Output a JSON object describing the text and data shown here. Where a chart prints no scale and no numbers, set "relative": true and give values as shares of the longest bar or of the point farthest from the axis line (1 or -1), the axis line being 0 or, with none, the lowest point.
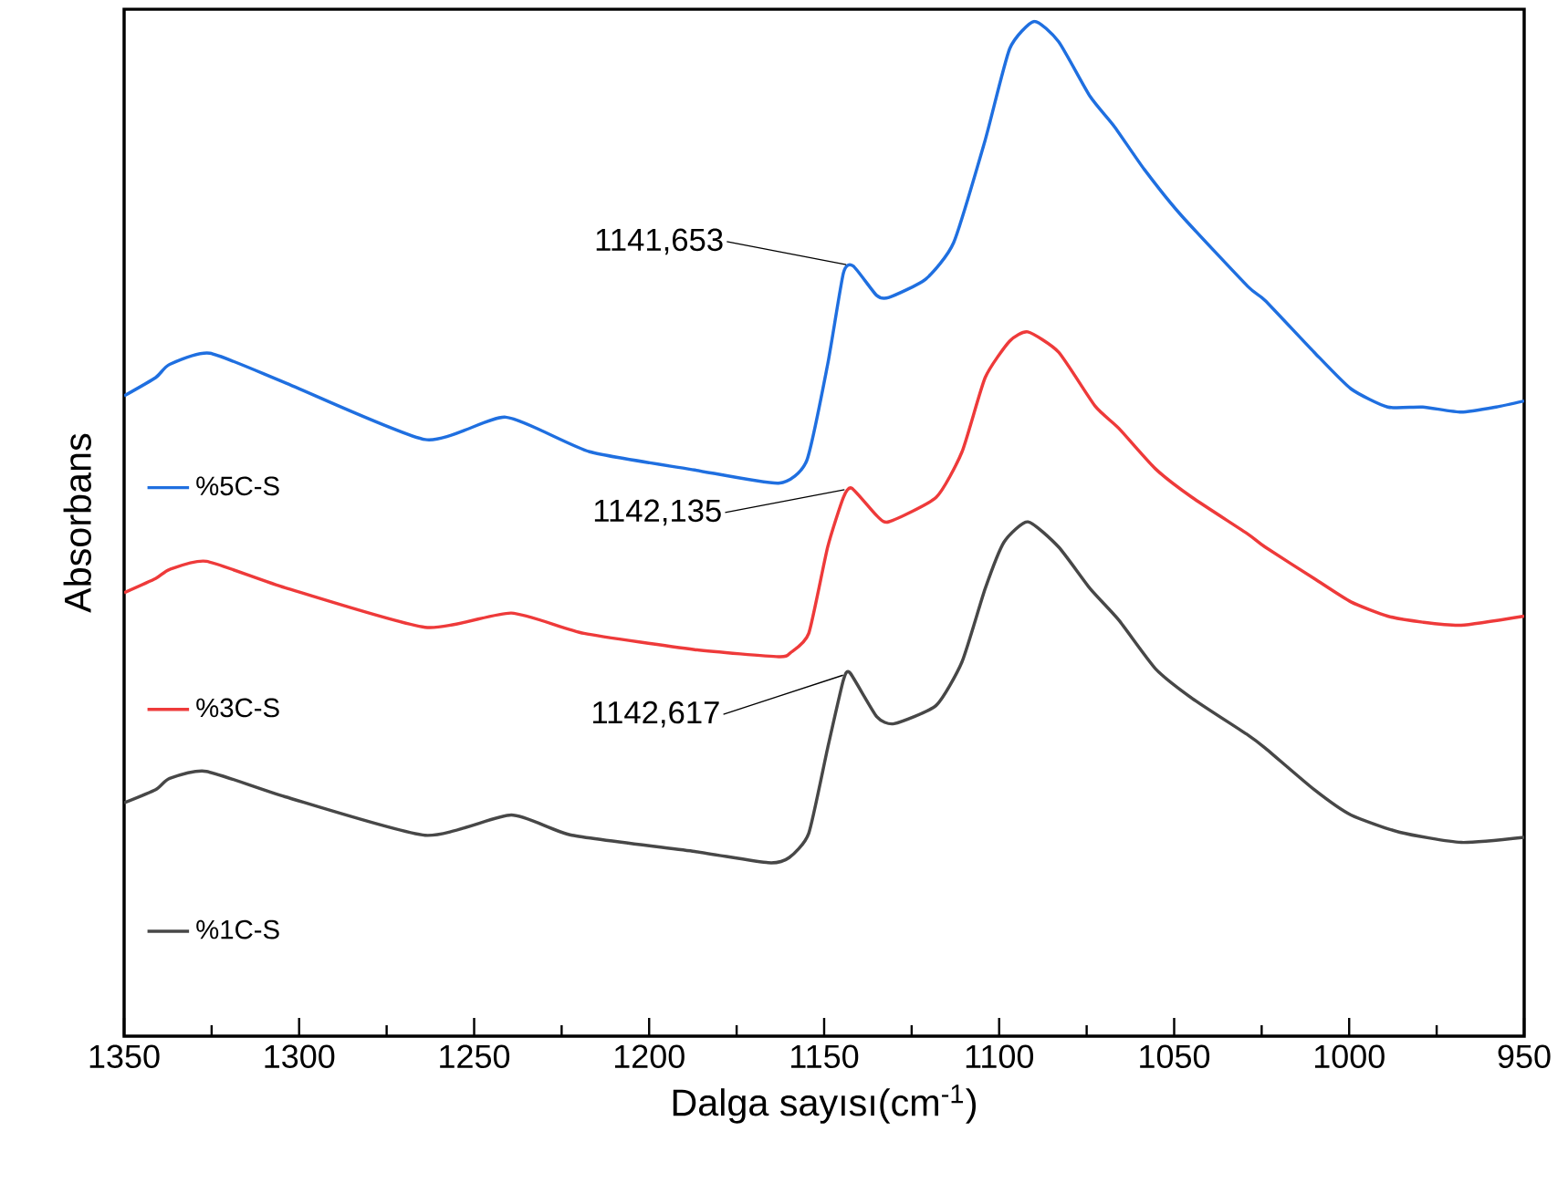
{
  "chart_data": {
    "type": "line",
    "relative": true,
    "xlabel": "Dalga sayısı(cm$^{-1}$)",
    "ylabel": "Absorbans",
    "xlim": [
      1350,
      950
    ],
    "xticks": [
      1350,
      1300,
      1250,
      1200,
      1150,
      1100,
      1050,
      1000,
      950
    ],
    "legend": "left",
    "marker": "none",
    "line_style": "solid",
    "grid": false,
    "series": [
      {
        "name": "%5C-S",
        "color": "#1f6fe0",
        "x": [
          1350,
          1341,
          1337,
          1325.5,
          1304,
          1264,
          1241,
          1217,
          1187,
          1163,
          1155,
          1149,
          1144.5,
          1141.7,
          1135,
          1131.5,
          1121,
          1113,
          1104,
          1097,
          1090,
          1083,
          1074,
          1067,
          1058.5,
          1048,
          1029,
          1024,
          1010,
          999.5,
          989,
          979,
          968,
          958,
          950
        ],
        "values": [
          0.631,
          0.649,
          0.662,
          0.673,
          0.644,
          0.588,
          0.61,
          0.576,
          0.558,
          0.545,
          0.567,
          0.662,
          0.752,
          0.759,
          0.73,
          0.728,
          0.746,
          0.782,
          0.883,
          0.973,
          1,
          0.98,
          0.926,
          0.896,
          0.854,
          0.809,
          0.739,
          0.725,
          0.674,
          0.638,
          0.62,
          0.62,
          0.615,
          0.62,
          0.626
        ]
      },
      {
        "name": "%3C-S",
        "color": "#ee3a3a",
        "x": [
          1350,
          1341,
          1337,
          1326.5,
          1304,
          1264,
          1239.4,
          1218.6,
          1187,
          1163,
          1159.6,
          1154.4,
          1149,
          1144.5,
          1142.1,
          1135,
          1131.5,
          1118,
          1110.6,
          1104,
          1097,
          1091.8,
          1083,
          1072.6,
          1065.8,
          1055.3,
          1044.9,
          1029,
          1024,
          1010,
          999.5,
          989,
          979,
          968,
          950
        ],
        "values": [
          0.437,
          0.451,
          0.46,
          0.468,
          0.442,
          0.403,
          0.417,
          0.397,
          0.381,
          0.374,
          0.378,
          0.397,
          0.482,
          0.531,
          0.54,
          0.513,
          0.507,
          0.531,
          0.576,
          0.649,
          0.685,
          0.694,
          0.674,
          0.621,
          0.599,
          0.559,
          0.531,
          0.495,
          0.482,
          0.451,
          0.428,
          0.414,
          0.408,
          0.405,
          0.414
        ]
      },
      {
        "name": "%1C-S",
        "color": "#474747",
        "x": [
          1350,
          1341,
          1337,
          1326.5,
          1304,
          1264,
          1239.4,
          1222,
          1187,
          1166,
          1160,
          1154.4,
          1149,
          1144.5,
          1142.6,
          1135,
          1130,
          1118,
          1110.6,
          1104,
          1098.6,
          1091.8,
          1083,
          1074,
          1065.8,
          1055.3,
          1044.9,
          1029,
          1024,
          1010,
          999.5,
          985.5,
          968,
          950
        ],
        "values": [
          0.23,
          0.243,
          0.254,
          0.261,
          0.236,
          0.198,
          0.218,
          0.198,
          0.182,
          0.171,
          0.176,
          0.2,
          0.284,
          0.351,
          0.358,
          0.315,
          0.308,
          0.326,
          0.369,
          0.441,
          0.487,
          0.507,
          0.482,
          0.441,
          0.41,
          0.362,
          0.333,
          0.297,
          0.284,
          0.243,
          0.218,
          0.201,
          0.191,
          0.196
        ]
      }
    ],
    "annotations": [
      {
        "text": "1141,653",
        "x": 1141.653,
        "y": 0.759
      },
      {
        "text": "1142,135",
        "x": 1142.135,
        "y": 0.54
      },
      {
        "text": "1142,617",
        "x": 1142.617,
        "y": 0.358
      }
    ]
  }
}
